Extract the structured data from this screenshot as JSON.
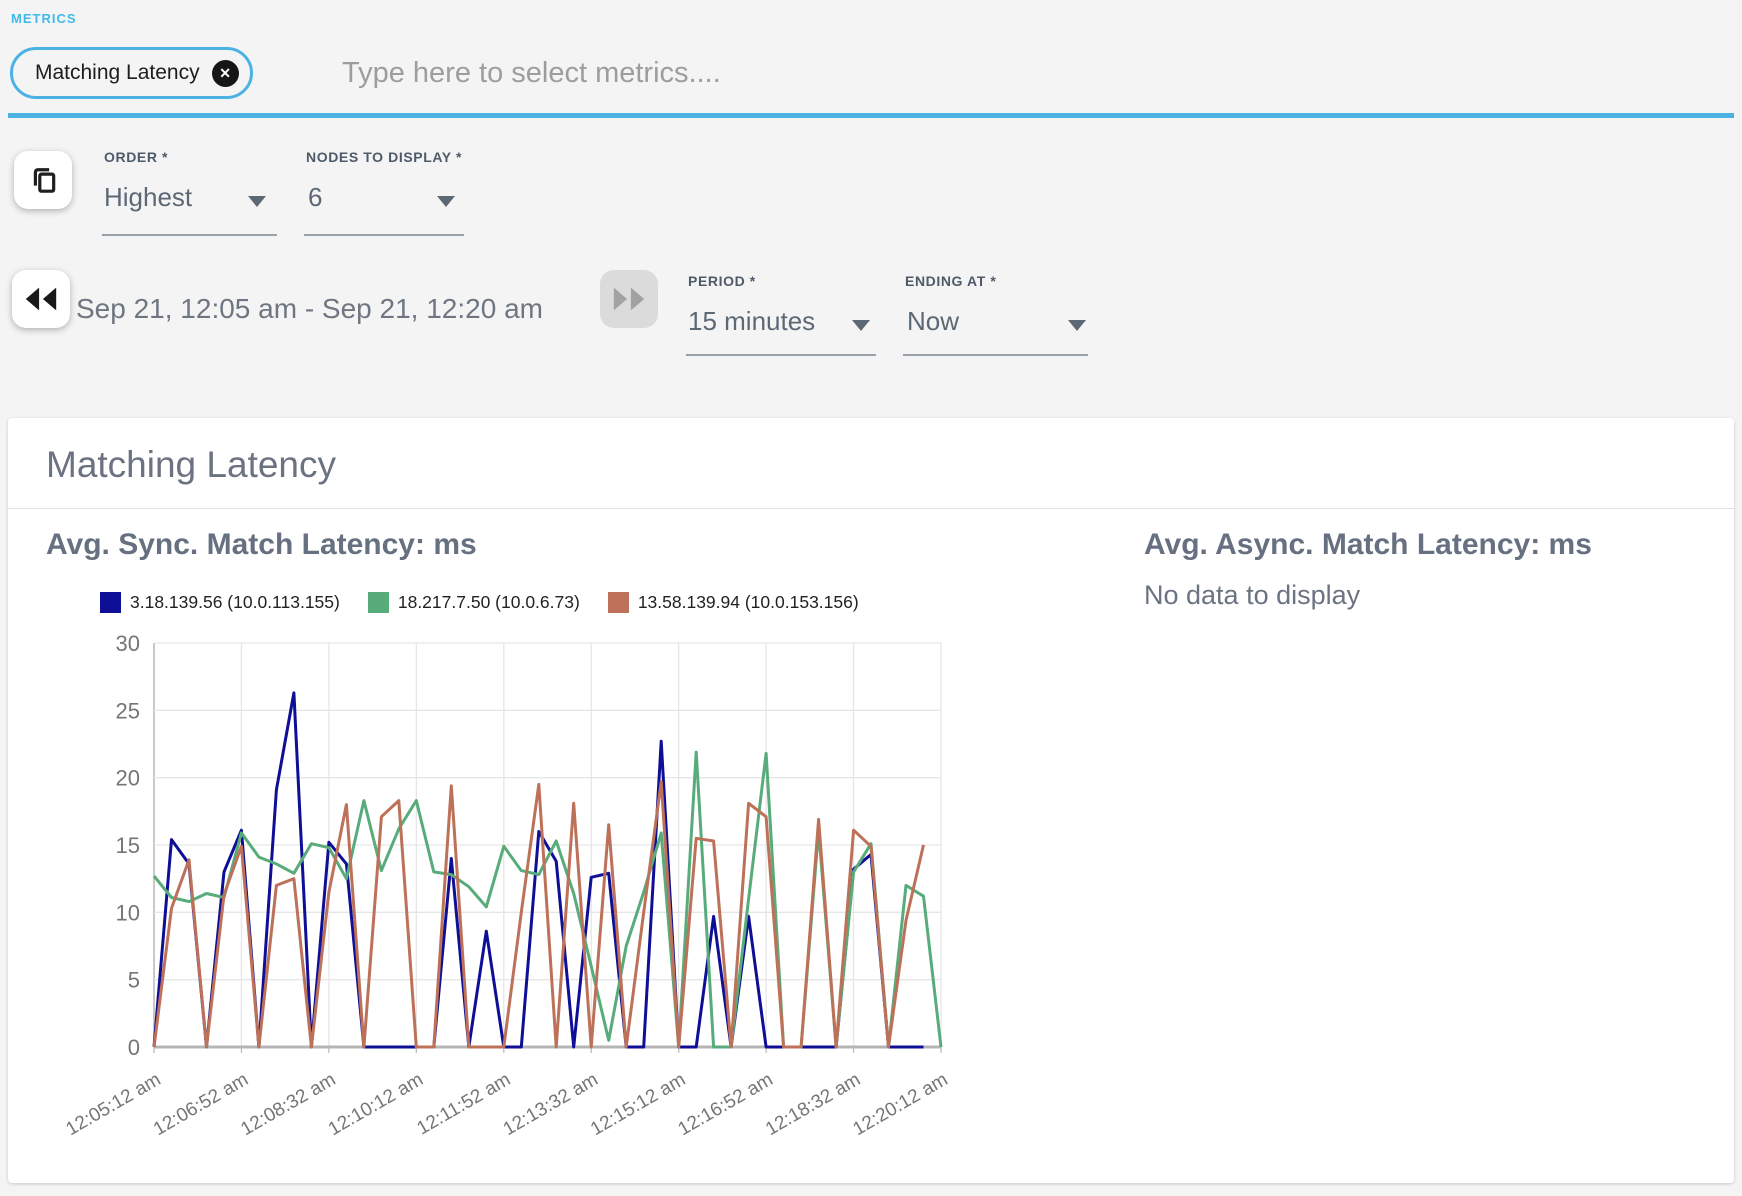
{
  "metrics": {
    "section_label": "METRICS",
    "chip": "Matching Latency",
    "placeholder": "Type here to select metrics...."
  },
  "controls": {
    "order_label": "ORDER *",
    "order_value": "Highest",
    "nodes_label": "NODES TO DISPLAY *",
    "nodes_value": "6",
    "date_range": "Sep 21, 12:05 am - Sep 21, 12:20 am",
    "period_label": "PERIOD *",
    "period_value": "15 minutes",
    "ending_label": "ENDING AT *",
    "ending_value": "Now"
  },
  "panel": {
    "title": "Matching Latency"
  },
  "icons": {
    "chip_close": "✕"
  },
  "theme": {
    "accent_blue": "#4ab3e4",
    "text_gray": "#6b7382",
    "axis_gray": "#757575"
  },
  "chart_data": [
    {
      "type": "line",
      "title": "Avg. Sync. Match Latency: ms",
      "legend_position": "top",
      "grid": true,
      "ylim": [
        0,
        30
      ],
      "y_ticks": [
        0,
        5,
        10,
        15,
        20,
        25,
        30
      ],
      "point_interval_seconds": 20,
      "x_labels": [
        "12:05:12 am",
        "12:06:52 am",
        "12:08:32 am",
        "12:10:12 am",
        "12:11:52 am",
        "12:13:32 am",
        "12:15:12 am",
        "12:16:52 am",
        "12:18:32 am",
        "12:20:12 am"
      ],
      "series": [
        {
          "name": "3.18.139.56 (10.0.113.155)",
          "color": "#0e0e96",
          "values": [
            0,
            15.4,
            13.6,
            0,
            13,
            16.1,
            0,
            19.1,
            26.3,
            0,
            15.2,
            13.6,
            0,
            0,
            0,
            0,
            0,
            14,
            0,
            8.6,
            0,
            0,
            16,
            13.8,
            0,
            12.6,
            12.9,
            0,
            0,
            22.7,
            0,
            0,
            9.7,
            0,
            9.7,
            0,
            0,
            0,
            0,
            0,
            13.2,
            14.3,
            0,
            0,
            0,
            null
          ]
        },
        {
          "name": "18.217.7.50 (10.0.6.73)",
          "color": "#58ab7b",
          "values": [
            12.7,
            11.1,
            10.8,
            11.4,
            11.1,
            15.9,
            14.1,
            13.6,
            12.9,
            15.1,
            14.8,
            12.5,
            18.3,
            13.1,
            16.2,
            18.3,
            13,
            12.8,
            11.9,
            10.4,
            14.9,
            13.1,
            12.8,
            15.3,
            11.4,
            6,
            0.5,
            7.5,
            11.5,
            15.9,
            0,
            21.9,
            0,
            0,
            11,
            21.8,
            0,
            0,
            16.1,
            0,
            13,
            15.1,
            0,
            12,
            11.2,
            0
          ]
        },
        {
          "name": "13.58.139.94 (10.0.153.156)",
          "color": "#bd7159",
          "values": [
            0,
            10.3,
            13.9,
            0,
            11.3,
            14.9,
            0,
            12,
            12.5,
            0,
            11.5,
            18,
            0,
            17.1,
            18.3,
            0,
            0,
            19.4,
            0,
            0,
            0,
            10,
            19.5,
            0,
            18.1,
            0,
            16.5,
            0,
            10,
            19.7,
            0,
            15.5,
            15.3,
            0,
            18.1,
            17.1,
            0,
            0,
            16.9,
            0,
            16.1,
            14.9,
            0,
            9.4,
            15,
            null
          ]
        }
      ]
    },
    {
      "type": "line",
      "title": "Avg. Async. Match Latency: ms",
      "no_data_message": "No data to display",
      "series": []
    }
  ]
}
